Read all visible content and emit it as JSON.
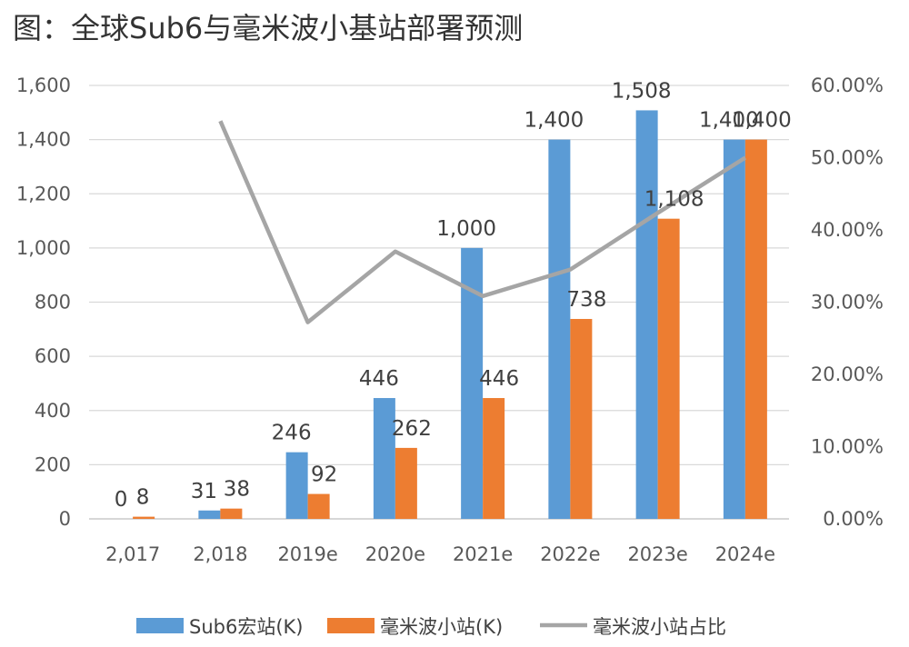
{
  "title": "图：全球Sub6与毫米波小基站部署预测",
  "chart_data": {
    "type": "bar",
    "title": "图：全球Sub6与毫米波小基站部署预测",
    "categories": [
      "2,017",
      "2,018",
      "2019e",
      "2020e",
      "2021e",
      "2022e",
      "2023e",
      "2024e"
    ],
    "series": [
      {
        "name": "Sub6宏站(K)",
        "type": "bar",
        "axis": "left",
        "color": "#5B9BD5",
        "values": [
          0,
          31,
          246,
          446,
          1000,
          1400,
          1508,
          1400
        ],
        "labels": [
          "0",
          "31",
          "246",
          "446",
          "1,000",
          "1,400",
          "1,508",
          "1,400"
        ]
      },
      {
        "name": "毫米波小站(K)",
        "type": "bar",
        "axis": "left",
        "color": "#ED7D31",
        "values": [
          8,
          38,
          92,
          262,
          446,
          738,
          1108,
          1400
        ],
        "labels": [
          "8",
          "38",
          "92",
          "262",
          "446",
          "738",
          "1,108",
          "1,400"
        ]
      },
      {
        "name": "毫米波小站占比",
        "type": "line",
        "axis": "right",
        "color": "#A5A5A5",
        "values": [
          null,
          55.07,
          27.22,
          37.01,
          30.84,
          34.52,
          42.35,
          50.0
        ]
      }
    ],
    "y_left": {
      "ylim": [
        0,
        1600
      ],
      "ticks": [
        "0",
        "200",
        "400",
        "600",
        "800",
        "1,000",
        "1,200",
        "1,400",
        "1,600"
      ]
    },
    "y_right": {
      "ylim": [
        0,
        60
      ],
      "ticks": [
        "0.00%",
        "10.00%",
        "20.00%",
        "30.00%",
        "40.00%",
        "50.00%",
        "60.00%"
      ]
    },
    "grid": true,
    "legend": "bottom"
  }
}
